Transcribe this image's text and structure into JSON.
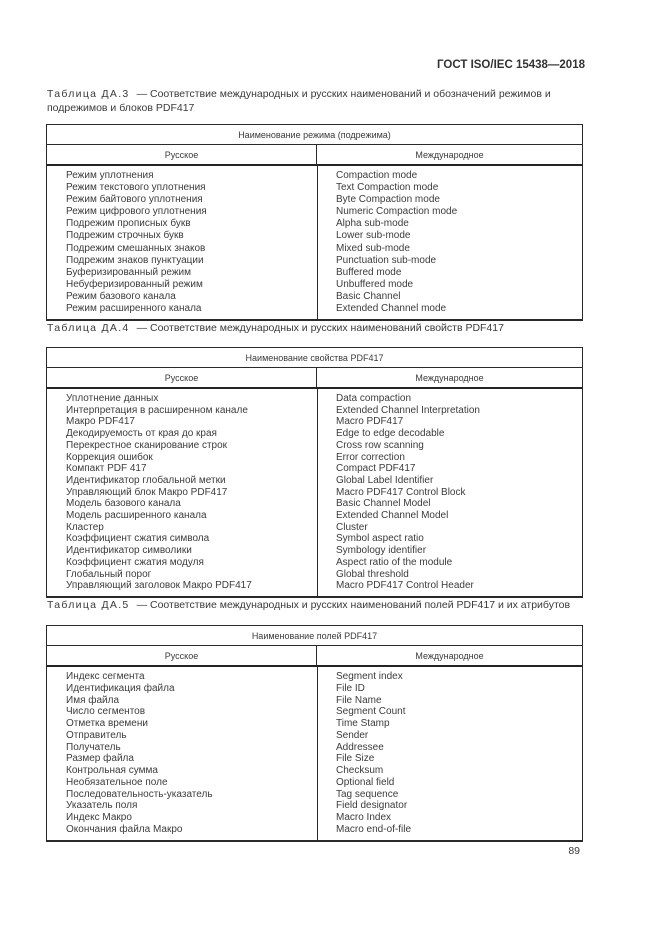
{
  "page": {
    "doc_header": "ГОСТ ISO/IEC 15438—2018",
    "page_number": "89"
  },
  "tables": [
    {
      "caption_label": "Таблица ДА.3",
      "caption_text": "— Соответствие международных и русских наименований и обозначений режимов и подрежимов и блоков PDF417",
      "group_header": "Наименование режима (подрежима)",
      "col_headers": [
        "Русское",
        "Международное"
      ],
      "rows": [
        [
          "Режим уплотнения",
          "Compaction mode"
        ],
        [
          "Режим текстового уплотнения",
          "Text Compaction mode"
        ],
        [
          "Режим байтового уплотнения",
          "Byte Compaction mode"
        ],
        [
          "Режим цифрового уплотнения",
          "Numeric Compaction mode"
        ],
        [
          "Подрежим прописных букв",
          "Alpha sub-mode"
        ],
        [
          "Подрежим строчных букв",
          "Lower sub-mode"
        ],
        [
          "Подрежим смешанных знаков",
          "Mixed sub-mode"
        ],
        [
          "Подрежим знаков пунктуации",
          "Punctuation sub-mode"
        ],
        [
          "Буферизированный режим",
          "Buffered mode"
        ],
        [
          "Небуферизированный режим",
          "Unbuffered mode"
        ],
        [
          "Режим базового канала",
          "Basic Channel"
        ],
        [
          "Режим расширенного канала",
          "Extended Channel mode"
        ]
      ]
    },
    {
      "caption_label": "Таблица ДА.4",
      "caption_text": "— Соответствие международных и русских наименований свойств PDF417",
      "group_header": "Наименование свойства PDF417",
      "col_headers": [
        "Русское",
        "Международное"
      ],
      "rows": [
        [
          "Уплотнение данных",
          "Data compaction"
        ],
        [
          "Интерпретация в расширенном канале",
          "Extended Channel Interpretation"
        ],
        [
          "Макро PDF417",
          "Macro PDF417"
        ],
        [
          "Декодируемость от края до края",
          "Edge to edge decodable"
        ],
        [
          "Перекрестное сканирование строк",
          "Cross row scanning"
        ],
        [
          "Коррекция ошибок",
          "Error correction"
        ],
        [
          "Компакт PDF 417",
          "Compact PDF417"
        ],
        [
          "Идентификатор глобальной метки",
          "Global Label Identifier"
        ],
        [
          "Управляющий блок Макро PDF417",
          "Macro PDF417 Control Block"
        ],
        [
          "Модель базового канала",
          "Basic Channel Model"
        ],
        [
          "Модель расширенного канала",
          "Extended Channel Model"
        ],
        [
          "Кластер",
          "Cluster"
        ],
        [
          "Коэффициент сжатия символа",
          "Symbol aspect ratio"
        ],
        [
          "Идентификатор символики",
          "Symbology identifier"
        ],
        [
          "Коэффициент сжатия модуля",
          "Aspect ratio of the module"
        ],
        [
          "Глобальный порог",
          "Global threshold"
        ],
        [
          "Управляющий заголовок Макро PDF417",
          "Macro PDF417 Control Header"
        ]
      ]
    },
    {
      "caption_label": "Таблица ДА.5",
      "caption_text": "— Соответствие международных и русских наименований полей PDF417 и их атрибутов",
      "group_header": "Наименование полей PDF417",
      "col_headers": [
        "Русское",
        "Международное"
      ],
      "rows": [
        [
          "Индекс сегмента",
          "Segment index"
        ],
        [
          "Идентификация файла",
          "File ID"
        ],
        [
          "Имя файла",
          "File Name"
        ],
        [
          "Число сегментов",
          "Segment Count"
        ],
        [
          "Отметка времени",
          "Time Stamp"
        ],
        [
          "Отправитель",
          "Sender"
        ],
        [
          "Получатель",
          "Addressee"
        ],
        [
          "Размер файла",
          "File Size"
        ],
        [
          "Контрольная сумма",
          "Checksum"
        ],
        [
          "Необязательное поле",
          "Optional field"
        ],
        [
          "Последовательность-указатель",
          "Tag sequence"
        ],
        [
          "Указатель поля",
          "Field designator"
        ],
        [
          "Индекс Макро",
          "Macro Index"
        ],
        [
          "Окончания файла Макро",
          "Macro end-of-file"
        ]
      ]
    }
  ]
}
